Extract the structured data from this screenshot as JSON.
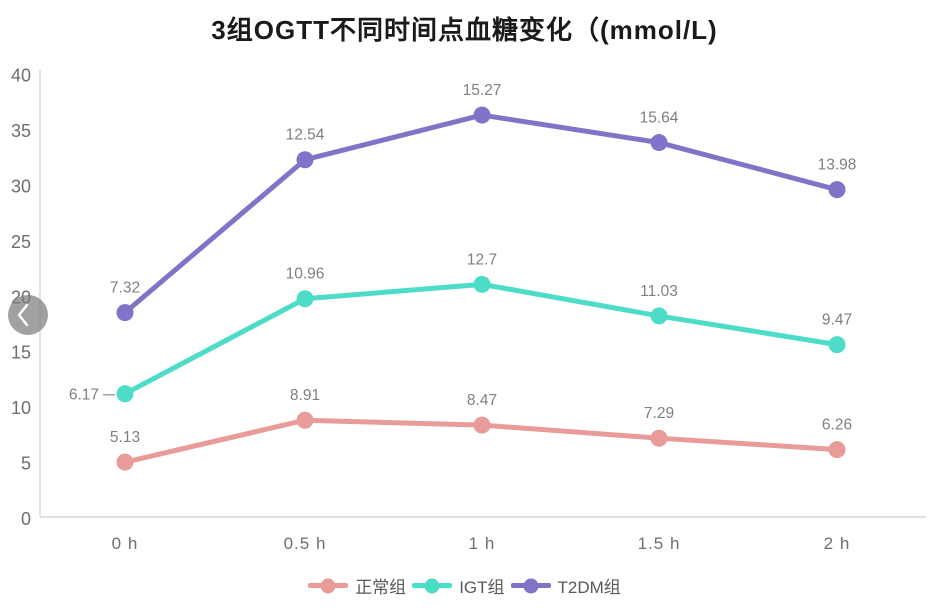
{
  "chart_data": {
    "type": "line",
    "stacked": true,
    "title": "3组OGTT不同时间点血糖变化（(mmol/L)",
    "categories": [
      "0 h",
      "0.5 h",
      "1 h",
      "1.5 h",
      "2 h"
    ],
    "series": [
      {
        "name": "正常组",
        "color": "#E89B99",
        "values": [
          5.13,
          8.91,
          8.47,
          7.29,
          6.26
        ]
      },
      {
        "name": "IGT组",
        "color": "#4CDCC8",
        "values": [
          6.17,
          10.96,
          12.7,
          11.03,
          9.47
        ]
      },
      {
        "name": "T2DM组",
        "color": "#8173C8",
        "values": [
          7.32,
          12.54,
          15.27,
          15.64,
          13.98
        ]
      }
    ],
    "ylim": [
      0,
      40
    ],
    "ytick_step": 5,
    "yticks": [
      0,
      5,
      10,
      15,
      20,
      25,
      30,
      35,
      40
    ],
    "grid": false,
    "legend_position": "bottom",
    "colors": {
      "title": "#1a1a1a",
      "axis_line": "#d9d9d9",
      "tick_label": "#6e6e6e",
      "data_label": "#7f7f7f",
      "legend_text": "#595959",
      "back_button_bg": "#7d7d7d",
      "back_button_glyph": "#ffffff"
    }
  },
  "nav": {
    "back_icon": "chevron-left"
  }
}
